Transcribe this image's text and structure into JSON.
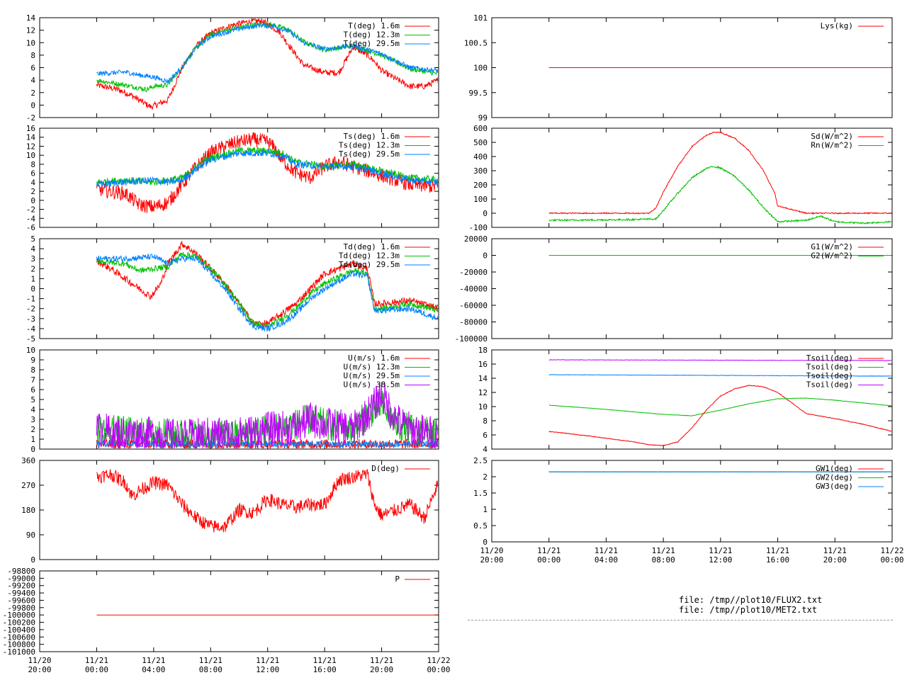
{
  "colors": {
    "red": "#ff0000",
    "green": "#00c000",
    "blue": "#0080ff",
    "purple": "#c000ff"
  },
  "footer": {
    "file1": "file: /tmp//plot10/FLUX2.txt",
    "file2": "file: /tmp//plot10/MET2.txt"
  },
  "chart_data": [
    {
      "id": "T",
      "type": "line",
      "column": "left",
      "ylim": [
        -2,
        14
      ],
      "yticks": [
        "-2",
        "0",
        "2",
        "4",
        "6",
        "8",
        "10",
        "12",
        "14"
      ],
      "legend_placement": "top-right",
      "series": [
        {
          "name": "T(deg)  1.6m",
          "color": "red",
          "x": [
            0,
            1.5,
            2.5,
            3.2,
            3.8,
            5,
            6,
            7,
            8,
            9.5,
            10.5,
            11.5,
            12,
            12.8,
            14,
            14.5,
            15,
            16,
            17,
            18,
            19,
            19.5,
            20,
            21,
            22,
            23,
            23.5,
            24
          ],
          "y": [
            3.2,
            2.5,
            1.5,
            0.5,
            -0.3,
            0.8,
            6,
            9.5,
            11.5,
            12.8,
            13.3,
            13.5,
            13.0,
            11.8,
            8,
            6.5,
            6,
            5.2,
            5.2,
            9.3,
            8.0,
            7.0,
            5.5,
            4.2,
            3.0,
            3.0,
            3.5,
            4.0
          ],
          "noise": 0.5
        },
        {
          "name": "T(deg) 12.3m",
          "color": "green",
          "x": [
            0,
            2,
            3.5,
            4,
            5,
            6,
            7,
            8,
            10,
            11.5,
            12.5,
            13.5,
            14.5,
            16,
            18,
            20,
            22,
            24
          ],
          "y": [
            4.0,
            3.2,
            2.5,
            3.0,
            3.2,
            6.2,
            9.3,
            11.3,
            12.5,
            13.0,
            12.8,
            12.0,
            10.2,
            8.8,
            9.5,
            8.0,
            5.8,
            5.0
          ],
          "noise": 0.4
        },
        {
          "name": "T(deg) 29.5m",
          "color": "blue",
          "x": [
            0,
            2,
            3,
            4,
            5,
            6,
            7,
            8,
            10,
            11.5,
            12.5,
            13.5,
            14.5,
            16,
            18,
            20,
            22,
            24
          ],
          "y": [
            5.0,
            5.3,
            4.8,
            4.5,
            3.8,
            6.0,
            9.2,
            11.0,
            12.2,
            12.8,
            12.6,
            11.8,
            10.0,
            9.0,
            9.5,
            8.2,
            6.0,
            5.5
          ],
          "noise": 0.4
        }
      ]
    },
    {
      "id": "Ts",
      "type": "line",
      "column": "left",
      "ylim": [
        -6,
        16
      ],
      "yticks": [
        "-6",
        "-4",
        "-2",
        "0",
        "2",
        "4",
        "6",
        "8",
        "10",
        "12",
        "14",
        "16"
      ],
      "legend_placement": "top-right",
      "series": [
        {
          "name": "Ts(deg)  1.6m",
          "color": "red",
          "x": [
            0,
            2,
            3,
            4,
            5,
            6,
            7,
            8,
            9,
            10,
            11,
            12,
            12.5,
            13,
            14,
            15,
            16,
            17,
            18,
            20,
            22,
            24
          ],
          "y": [
            2.5,
            1.5,
            -1,
            -1.5,
            -0.5,
            3.5,
            7.5,
            10.5,
            12,
            13,
            13.5,
            13,
            11.5,
            9,
            6.0,
            5.0,
            7.5,
            8.5,
            7.5,
            5.5,
            3.5,
            3.0
          ],
          "noise": 1.6
        },
        {
          "name": "Ts(deg) 12.3m",
          "color": "green",
          "x": [
            0,
            2,
            4,
            5,
            6,
            7,
            8,
            10,
            12,
            13,
            14,
            16,
            18,
            20,
            22,
            24
          ],
          "y": [
            4.0,
            4.5,
            4.0,
            4.5,
            5.0,
            7.5,
            9.5,
            11.0,
            11.0,
            10.5,
            8.5,
            7.5,
            8.0,
            6.5,
            5.0,
            4.5
          ],
          "noise": 0.8
        },
        {
          "name": "Ts(deg) 29.5m",
          "color": "blue",
          "x": [
            0,
            2,
            4,
            5,
            6,
            7,
            8,
            10,
            12,
            13,
            14,
            16,
            18,
            20,
            22,
            24
          ],
          "y": [
            3.5,
            4.0,
            4.5,
            4.0,
            4.5,
            7.0,
            9.0,
            10.5,
            10.5,
            10.0,
            8.0,
            7.5,
            7.5,
            6.0,
            4.5,
            4.0
          ],
          "noise": 0.8
        }
      ]
    },
    {
      "id": "Td",
      "type": "line",
      "column": "left",
      "ylim": [
        -5,
        5
      ],
      "yticks": [
        "-5",
        "-4",
        "-3",
        "-2",
        "-1",
        "0",
        "1",
        "2",
        "3",
        "4",
        "5"
      ],
      "legend_placement": "top-right",
      "series": [
        {
          "name": "Td(deg)  1.6m",
          "color": "red",
          "x": [
            0,
            1,
            2,
            3,
            3.8,
            4.5,
            5,
            6,
            7,
            8,
            9,
            10,
            11,
            12,
            13,
            14,
            15,
            16,
            17,
            18,
            19,
            19.5,
            20,
            22,
            24
          ],
          "y": [
            2.8,
            2.0,
            1.0,
            0.0,
            -0.8,
            0.5,
            2.5,
            4.5,
            3.5,
            2.0,
            0.5,
            -1.5,
            -3.5,
            -3.5,
            -2.5,
            -1.5,
            0.0,
            1.5,
            2.0,
            2.5,
            2.0,
            -1.5,
            -1.5,
            -1.2,
            -2.0
          ],
          "noise": 0.35
        },
        {
          "name": "Td(deg) 12.3m",
          "color": "green",
          "x": [
            0,
            2,
            3,
            4,
            5,
            6,
            7,
            8,
            9,
            10,
            11,
            12,
            13,
            14,
            15,
            16,
            17,
            18,
            19,
            19.5,
            20,
            22,
            24
          ],
          "y": [
            2.8,
            2.5,
            1.8,
            2.0,
            2.2,
            3.5,
            3.2,
            2.0,
            0.5,
            -1.5,
            -3.5,
            -3.8,
            -3.0,
            -2.0,
            -0.5,
            0.5,
            1.2,
            1.8,
            1.5,
            -2.0,
            -2.0,
            -1.5,
            -2.2
          ],
          "noise": 0.3
        },
        {
          "name": "Td(deg) 29.5m",
          "color": "blue",
          "x": [
            0,
            2,
            4,
            5,
            6,
            7,
            8,
            9,
            10,
            11,
            12,
            13,
            14,
            15,
            16,
            17,
            18,
            19,
            19.5,
            20,
            22,
            24
          ],
          "y": [
            3.0,
            3.0,
            3.2,
            2.5,
            3.0,
            3.0,
            1.5,
            0.0,
            -2.0,
            -3.8,
            -4.0,
            -3.5,
            -2.5,
            -1.0,
            0.0,
            0.8,
            1.5,
            1.2,
            -2.2,
            -2.2,
            -2.0,
            -3.0
          ],
          "noise": 0.3
        }
      ]
    },
    {
      "id": "U",
      "type": "line",
      "column": "left",
      "ylim": [
        0,
        10
      ],
      "yticks": [
        "0",
        "1",
        "2",
        "3",
        "4",
        "5",
        "6",
        "7",
        "8",
        "9",
        "10"
      ],
      "legend_placement": "top-right",
      "series": [
        {
          "name": "U(m/s)  1.6m",
          "color": "red",
          "x": [
            0,
            24
          ],
          "y": [
            0.5,
            0.5
          ],
          "noise": 0.5
        },
        {
          "name": "U(m/s) 12.3m",
          "color": "green",
          "x": [
            0,
            4,
            6,
            8,
            10,
            12,
            14,
            15,
            16,
            18,
            19,
            20,
            21,
            22,
            24
          ],
          "y": [
            2.0,
            1.5,
            1.5,
            1.2,
            1.5,
            2.0,
            2.5,
            3.0,
            2.5,
            2.0,
            3.5,
            4.5,
            2.5,
            2.0,
            1.5
          ],
          "noise": 1.6
        },
        {
          "name": "U(m/s) 29.5m",
          "color": "blue",
          "x": [
            0,
            24
          ],
          "y": [
            0.5,
            0.5
          ],
          "noise": 0.3
        },
        {
          "name": "U(m/s) 38.5m",
          "color": "purple",
          "x": [
            0,
            2,
            4,
            6,
            8,
            10,
            12,
            14,
            15,
            16,
            18,
            19,
            20,
            21,
            22,
            24
          ],
          "y": [
            2.0,
            1.5,
            1.5,
            1.2,
            1.5,
            1.5,
            2.0,
            2.2,
            3.0,
            2.5,
            2.0,
            3.5,
            5.5,
            3.0,
            2.0,
            1.5
          ],
          "noise": 1.8
        }
      ]
    },
    {
      "id": "D",
      "type": "line",
      "column": "left",
      "ylim": [
        0,
        360
      ],
      "yticks": [
        "0",
        "90",
        "180",
        "270",
        "360"
      ],
      "legend_placement": "top-right",
      "series": [
        {
          "name": "D(deg)",
          "color": "red",
          "x": [
            0,
            1,
            2,
            2.5,
            3,
            4,
            5,
            6,
            7,
            8,
            9,
            10,
            11,
            12,
            13,
            14,
            15,
            16,
            17,
            18,
            19,
            19.5,
            20,
            21,
            22,
            23,
            24
          ],
          "y": [
            300,
            310,
            280,
            230,
            250,
            280,
            270,
            200,
            150,
            120,
            120,
            180,
            170,
            220,
            200,
            190,
            200,
            200,
            290,
            300,
            310,
            200,
            160,
            180,
            200,
            150,
            280
          ],
          "noise": 25
        }
      ]
    },
    {
      "id": "P",
      "type": "line",
      "column": "left",
      "ylim": [
        -101000,
        -98800
      ],
      "yticks": [
        "-101000",
        "-100800",
        "-100600",
        "-100400",
        "-100200",
        "-100000",
        "-99800",
        "-99600",
        "-99400",
        "-99200",
        "-99000",
        "-98800"
      ],
      "legend_placement": "top-right",
      "series": [
        {
          "name": "P",
          "color": "red",
          "x": [
            0,
            24
          ],
          "y": [
            -100000,
            -100000
          ],
          "noise": 0
        }
      ]
    },
    {
      "id": "Lys",
      "type": "line",
      "column": "right",
      "ylim": [
        99,
        101
      ],
      "yticks": [
        "99",
        "99.5",
        "100",
        "100.5",
        "101"
      ],
      "legend_placement": "top-right",
      "series": [
        {
          "name": "Lys(kg)",
          "color": "red",
          "x": [
            0,
            24
          ],
          "y": [
            100,
            100
          ],
          "noise": 0
        }
      ]
    },
    {
      "id": "Rad",
      "type": "line",
      "column": "right",
      "ylim": [
        -100,
        600
      ],
      "yticks": [
        "-100",
        "0",
        "100",
        "200",
        "300",
        "400",
        "500",
        "600"
      ],
      "legend_placement": "top-right",
      "series": [
        {
          "name": "Sd(W/m^2)",
          "color": "red",
          "x": [
            0,
            7,
            7.5,
            8,
            9,
            10,
            11,
            11.5,
            12,
            13,
            14,
            15,
            15.8,
            16,
            18,
            20,
            22,
            24
          ],
          "y": [
            0,
            0,
            40,
            150,
            330,
            470,
            550,
            570,
            570,
            530,
            440,
            300,
            140,
            50,
            0,
            0,
            0,
            0
          ],
          "noise": 4
        },
        {
          "name": "Rn(W/m^2)",
          "color": "green",
          "x": [
            0,
            6,
            7.5,
            8,
            9,
            10,
            11,
            11.5,
            12,
            13,
            14,
            15,
            15.8,
            16,
            18,
            19,
            20,
            22,
            24
          ],
          "y": [
            -50,
            -45,
            -40,
            20,
            140,
            250,
            315,
            330,
            320,
            260,
            160,
            40,
            -40,
            -60,
            -50,
            -20,
            -60,
            -70,
            -60
          ],
          "noise": 6
        }
      ]
    },
    {
      "id": "G",
      "type": "line",
      "column": "right",
      "ylim": [
        -100000,
        20000
      ],
      "yticks": [
        "-100000",
        "-80000",
        "-60000",
        "-40000",
        "-20000",
        "0",
        "20000"
      ],
      "legend_placement": "top-right",
      "series": [
        {
          "name": "G1(W/m^2)",
          "color": "red",
          "x": [
            0,
            24
          ],
          "y": [
            0,
            0
          ],
          "noise": 0
        },
        {
          "name": "G2(W/m^2)",
          "color": "green",
          "x": [
            0,
            24
          ],
          "y": [
            0,
            0
          ],
          "noise": 0
        }
      ]
    },
    {
      "id": "Tsoil",
      "type": "line",
      "column": "right",
      "ylim": [
        4,
        18
      ],
      "yticks": [
        "4",
        "6",
        "8",
        "10",
        "12",
        "14",
        "16",
        "18"
      ],
      "legend_placement": "top-right",
      "series": [
        {
          "name": "Tsoil(deg)",
          "color": "red",
          "x": [
            0,
            3,
            6,
            7,
            8,
            9,
            10,
            11,
            12,
            13,
            14,
            15,
            16,
            17,
            18,
            20,
            22,
            24
          ],
          "y": [
            6.5,
            5.8,
            5.0,
            4.6,
            4.5,
            5.0,
            7.0,
            9.5,
            11.5,
            12.5,
            13.0,
            12.8,
            12.0,
            10.5,
            9.0,
            8.3,
            7.5,
            6.5
          ],
          "noise": 0.05
        },
        {
          "name": "Tsoil(deg)",
          "color": "green",
          "x": [
            0,
            4,
            8,
            10,
            12,
            14,
            16,
            18,
            20,
            24
          ],
          "y": [
            10.2,
            9.6,
            8.9,
            8.7,
            9.5,
            10.4,
            11.1,
            11.2,
            10.9,
            10.1
          ],
          "noise": 0.03
        },
        {
          "name": "Tsoil(deg)",
          "color": "blue",
          "x": [
            0,
            24
          ],
          "y": [
            14.5,
            14.3
          ],
          "noise": 0.03
        },
        {
          "name": "Tsoil(deg)",
          "color": "purple",
          "x": [
            0,
            24
          ],
          "y": [
            16.6,
            16.5
          ],
          "noise": 0.03
        }
      ]
    },
    {
      "id": "GW",
      "type": "line",
      "column": "right",
      "ylim": [
        0,
        2.5
      ],
      "yticks": [
        "0",
        "0.5",
        "1",
        "1.5",
        "2",
        "2.5"
      ],
      "legend_placement": "top-right",
      "series": [
        {
          "name": "GW1(deg)",
          "color": "red",
          "x": [
            0,
            24
          ],
          "y": [
            2.15,
            2.15
          ],
          "noise": 0
        },
        {
          "name": "GW2(deg)",
          "color": "green",
          "x": [
            0,
            24
          ],
          "y": [
            2.15,
            2.15
          ],
          "noise": 0.005
        },
        {
          "name": "GW3(deg)",
          "color": "blue",
          "x": [
            0,
            24
          ],
          "y": [
            2.15,
            2.15
          ],
          "noise": 0
        }
      ]
    }
  ],
  "x_axis": {
    "ticks": [
      {
        "date": "11/20",
        "time": "20:00"
      },
      {
        "date": "11/21",
        "time": "00:00"
      },
      {
        "date": "11/21",
        "time": "04:00"
      },
      {
        "date": "11/21",
        "time": "08:00"
      },
      {
        "date": "11/21",
        "time": "12:00"
      },
      {
        "date": "11/21",
        "time": "16:00"
      },
      {
        "date": "11/21",
        "time": "20:00"
      },
      {
        "date": "11/22",
        "time": "00:00"
      }
    ]
  }
}
